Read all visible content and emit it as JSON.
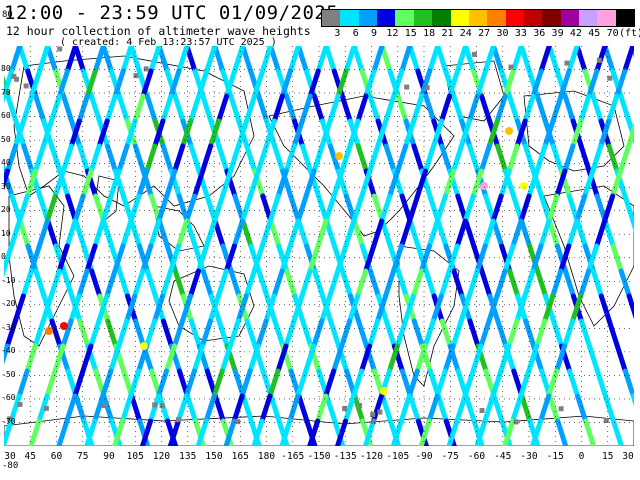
{
  "header": {
    "title": "12:00 - 23:59 UTC 01/09/2025",
    "subtitle": "12 hour collection of altimeter wave heights",
    "created": "( created:  4 Feb 13:23:57 UTC 2025 )"
  },
  "legend": {
    "labels": [
      "3",
      "6",
      "9",
      "12",
      "15",
      "18",
      "21",
      "24",
      "27",
      "30",
      "33",
      "36",
      "39",
      "42",
      "45",
      "70",
      "(ft)"
    ],
    "colors": [
      "#808080",
      "#00e5ff",
      "#00a0ff",
      "#0000e0",
      "#60ff60",
      "#20c020",
      "#008000",
      "#ffff00",
      "#ffc000",
      "#ff8000",
      "#ff0000",
      "#c00000",
      "#800000",
      "#a000a0",
      "#c8a0ff",
      "#ffa0e0",
      "#000000"
    ]
  },
  "map": {
    "lat_labels": [
      "80",
      "70",
      "60",
      "50",
      "40",
      "30",
      "20",
      "10",
      "0",
      "-10",
      "-20",
      "-30",
      "-40",
      "-50",
      "-60",
      "-70"
    ],
    "lon_labels": [
      "30",
      "45",
      "60",
      "75",
      "90",
      "105",
      "120",
      "135",
      "150",
      "165",
      "180",
      "-165",
      "-150",
      "-135",
      "-120",
      "-105",
      "-90",
      "-75",
      "-60",
      "-45",
      "-30",
      "-15",
      "0",
      "15",
      "30"
    ],
    "corner_bottom": "-80",
    "corner_top": "80"
  },
  "chart_data": {
    "type": "map-tracks",
    "title": "12:00 - 23:59 UTC 01/09/2025",
    "legend_units": "(ft)",
    "lon_range": [
      30,
      390
    ],
    "lat_range": [
      -80,
      80
    ],
    "colorscale_ft": [
      3,
      6,
      9,
      12,
      15,
      18,
      21,
      24,
      27,
      30,
      33,
      36,
      39,
      42,
      45,
      70
    ],
    "grid": true
  }
}
